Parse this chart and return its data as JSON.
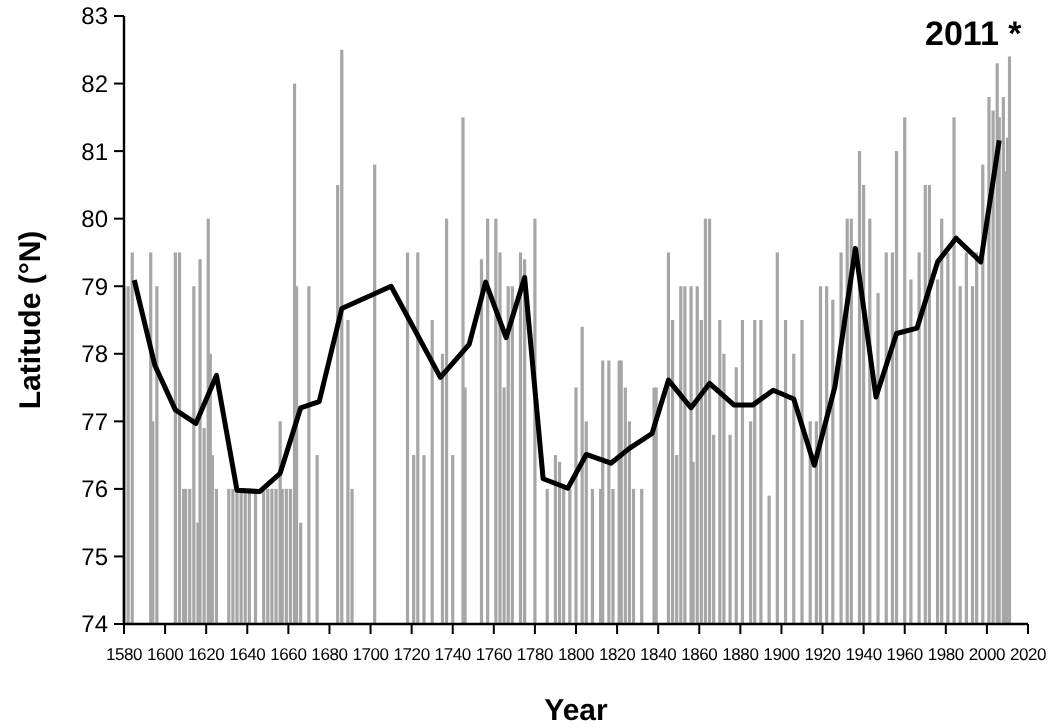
{
  "chart_data": {
    "type": "bar",
    "xlabel": "Year",
    "ylabel": "Latitude (°N)",
    "xlim": [
      1580,
      2020
    ],
    "xticks": [
      1580,
      1600,
      1620,
      1640,
      1660,
      1680,
      1700,
      1720,
      1740,
      1760,
      1780,
      1800,
      1820,
      1840,
      1860,
      1880,
      1900,
      1920,
      1940,
      1960,
      1980,
      2000,
      2020
    ],
    "ylim": [
      74,
      83
    ],
    "yticks": [
      74,
      75,
      76,
      77,
      78,
      79,
      80,
      81,
      82,
      83
    ],
    "grid": false,
    "annotations": [
      {
        "text": "2011 *",
        "x": 2011,
        "y": 82.4
      }
    ],
    "series": [
      {
        "color": "#a6a6a6",
        "x": [
          1580,
          1582,
          1584,
          1593,
          1594,
          1596,
          1605,
          1607,
          1609,
          1610,
          1612,
          1614,
          1616,
          1617,
          1619,
          1621,
          1622,
          1623,
          1625,
          1631,
          1633,
          1635,
          1637,
          1639,
          1641,
          1644,
          1648,
          1650,
          1652,
          1654,
          1656,
          1657,
          1659,
          1661,
          1663,
          1664,
          1666,
          1670,
          1674,
          1684,
          1686,
          1689,
          1691,
          1702,
          1718,
          1721,
          1723,
          1726,
          1730,
          1735,
          1737,
          1740,
          1745,
          1746,
          1754,
          1757,
          1761,
          1763,
          1765,
          1767,
          1769,
          1773,
          1775,
          1780,
          1786,
          1790,
          1792,
          1794,
          1797,
          1800,
          1803,
          1805,
          1808,
          1812,
          1813,
          1816,
          1818,
          1821,
          1822,
          1824,
          1826,
          1828,
          1832,
          1838,
          1839,
          1845,
          1847,
          1849,
          1851,
          1853,
          1856,
          1857,
          1859,
          1861,
          1863,
          1865,
          1867,
          1870,
          1872,
          1875,
          1878,
          1881,
          1885,
          1887,
          1890,
          1894,
          1898,
          1902,
          1906,
          1910,
          1914,
          1917,
          1919,
          1922,
          1925,
          1929,
          1932,
          1934,
          1938,
          1940,
          1943,
          1947,
          1951,
          1954,
          1956,
          1960,
          1963,
          1967,
          1970,
          1972,
          1976,
          1978,
          1981,
          1984,
          1987,
          1990,
          1993,
          1995,
          1998,
          2001,
          2003,
          2005,
          2006,
          2008,
          2009,
          2010,
          2011
        ],
        "values": [
          79.0,
          79.0,
          79.5,
          79.5,
          77.0,
          79.0,
          79.5,
          79.5,
          76.0,
          76.0,
          76.0,
          79.0,
          75.5,
          79.4,
          76.9,
          80.0,
          78.0,
          76.5,
          76.0,
          76.0,
          76.0,
          76.0,
          76.0,
          76.0,
          76.0,
          76.0,
          76.0,
          76.0,
          76.0,
          76.0,
          77.0,
          76.0,
          76.0,
          76.0,
          82.0,
          79.0,
          75.5,
          79.0,
          76.5,
          80.5,
          82.5,
          78.5,
          76.0,
          80.8,
          79.5,
          76.5,
          79.5,
          76.5,
          78.5,
          78.0,
          80.0,
          76.5,
          81.5,
          77.5,
          79.4,
          80.0,
          80.0,
          79.5,
          77.5,
          79.0,
          79.0,
          79.5,
          79.4,
          80.0,
          76.0,
          76.5,
          76.4,
          76.0,
          76.0,
          77.5,
          78.4,
          77.0,
          76.0,
          76.0,
          77.9,
          77.9,
          76.0,
          77.9,
          77.9,
          77.5,
          77.0,
          76.0,
          76.0,
          77.5,
          77.5,
          79.5,
          78.5,
          76.5,
          79.0,
          79.0,
          79.0,
          76.4,
          79.0,
          78.5,
          80.0,
          80.0,
          76.8,
          78.5,
          78.0,
          76.8,
          77.8,
          78.5,
          77.0,
          78.5,
          78.5,
          75.9,
          79.5,
          78.5,
          78.0,
          78.5,
          77.0,
          77.0,
          79.0,
          79.0,
          78.8,
          79.5,
          80.0,
          80.0,
          81.0,
          80.5,
          80.0,
          78.9,
          79.5,
          79.5,
          81.0,
          81.5,
          79.1,
          79.5,
          80.5,
          80.5,
          79.1,
          80.0,
          79.5,
          81.5,
          79.0,
          79.5,
          79.0,
          79.5,
          80.8,
          81.8,
          81.6,
          82.3,
          81.5,
          81.8,
          80.7,
          81.2,
          82.4
        ]
      },
      {
        "type": "line",
        "color": "#000000",
        "x": [
          1585,
          1595,
          1605,
          1615,
          1625,
          1635,
          1646,
          1656,
          1666,
          1675,
          1686,
          1710,
          1734,
          1748,
          1756,
          1766,
          1775,
          1784,
          1796,
          1805,
          1817,
          1826,
          1837,
          1845,
          1856,
          1865,
          1877,
          1886,
          1896,
          1906,
          1916,
          1926,
          1936,
          1946,
          1956,
          1966,
          1976,
          1985,
          1997,
          2006
        ],
        "values": [
          79.09,
          77.83,
          77.17,
          76.97,
          77.68,
          75.98,
          75.96,
          76.23,
          77.2,
          77.29,
          78.67,
          79.0,
          77.65,
          78.14,
          79.06,
          78.24,
          79.13,
          76.15,
          76.01,
          76.51,
          76.38,
          76.6,
          76.82,
          77.61,
          77.2,
          77.56,
          77.24,
          77.24,
          77.46,
          77.33,
          76.35,
          77.51,
          79.56,
          77.36,
          78.3,
          78.38,
          79.36,
          79.71,
          79.36,
          81.16
        ]
      }
    ]
  }
}
